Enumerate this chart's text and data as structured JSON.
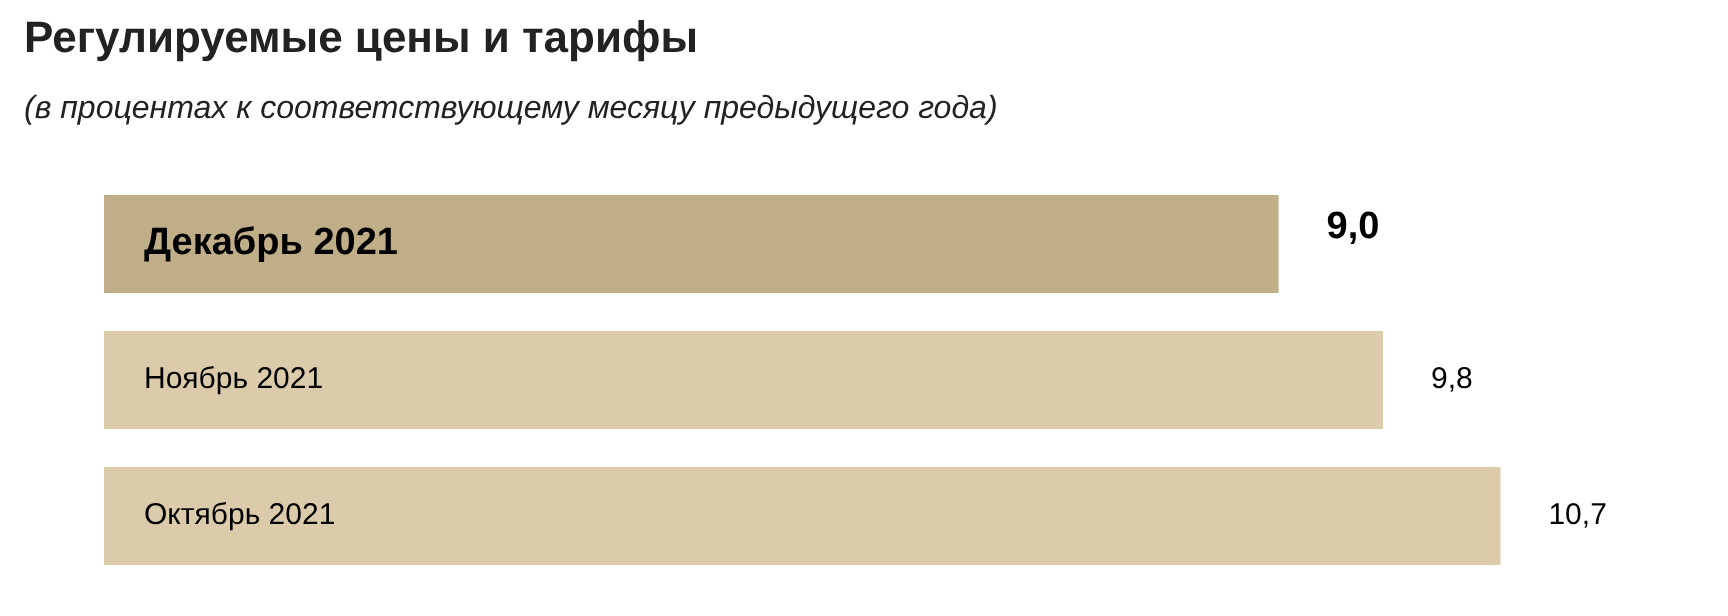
{
  "chart_data": {
    "type": "bar",
    "orientation": "horizontal",
    "data_labels": true,
    "title": "Регулируемые цены и тарифы",
    "subtitle": "(в процентах к соответствующему месяцу предыдущего года)",
    "categories": [
      "Декабрь 2021",
      "Ноябрь 2021",
      "Октябрь 2021"
    ],
    "values": [
      9.0,
      9.8,
      10.7
    ],
    "colors": [
      "#c0ae88",
      "#dccbab",
      "#dccbab"
    ],
    "value_labels": [
      "9,0",
      "9,8",
      "10,7"
    ],
    "legend": false
  }
}
